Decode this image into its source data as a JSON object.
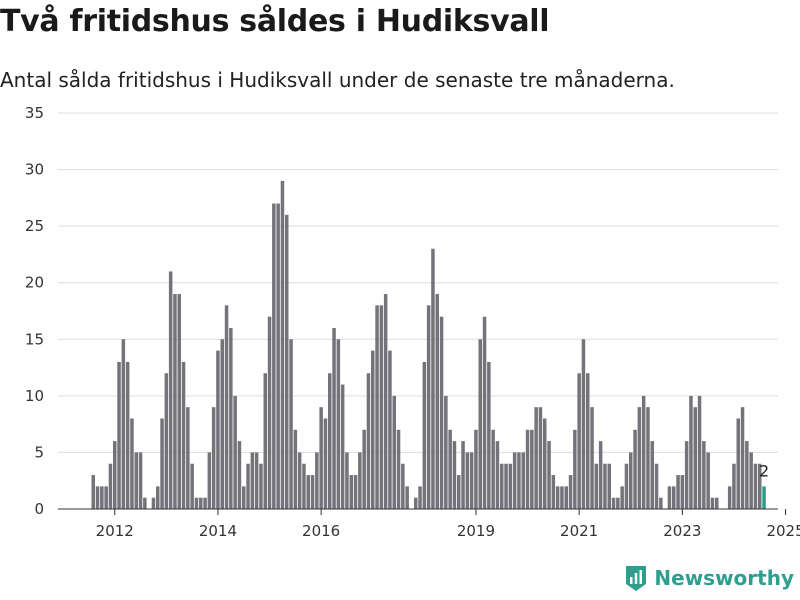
{
  "title": "Två fritidshus såldes i Hudiksvall",
  "subtitle": "Antal sålda fritidshus i Hudiksvall under de senaste tre månaderna.",
  "brand": "Newsworthy",
  "colors": {
    "bar": "#75737a",
    "highlight": "#2a9d8f",
    "brand": "#2e9f8f",
    "grid": "#dddddd"
  },
  "chart_data": {
    "type": "bar",
    "x_start_index": 7,
    "values": [
      3,
      2,
      2,
      2,
      4,
      6,
      13,
      15,
      13,
      8,
      5,
      5,
      1,
      0,
      1,
      2,
      8,
      12,
      21,
      19,
      19,
      13,
      9,
      4,
      1,
      1,
      1,
      5,
      9,
      14,
      15,
      18,
      16,
      10,
      6,
      2,
      4,
      5,
      5,
      4,
      12,
      17,
      27,
      27,
      29,
      26,
      15,
      7,
      5,
      4,
      3,
      3,
      5,
      9,
      8,
      12,
      16,
      15,
      11,
      5,
      3,
      3,
      5,
      7,
      12,
      14,
      18,
      18,
      19,
      14,
      10,
      7,
      4,
      2,
      0,
      1,
      2,
      13,
      18,
      23,
      19,
      17,
      10,
      7,
      6,
      3,
      6,
      5,
      5,
      7,
      15,
      17,
      13,
      7,
      6,
      4,
      4,
      4,
      5,
      5,
      5,
      7,
      7,
      9,
      9,
      8,
      6,
      3,
      2,
      2,
      2,
      3,
      7,
      12,
      15,
      12,
      9,
      4,
      6,
      4,
      4,
      1,
      1,
      2,
      4,
      5,
      7,
      9,
      10,
      9,
      6,
      4,
      1,
      0,
      2,
      2,
      3,
      3,
      6,
      10,
      9,
      10,
      6,
      5,
      1,
      1,
      0,
      0,
      2,
      4,
      8,
      9,
      6,
      5,
      4,
      4,
      2
    ],
    "highlight_last": true,
    "last_value_label": "2",
    "x_ticks": [
      "2012",
      "2014",
      "2016",
      "2019",
      "2021",
      "2023",
      "2025"
    ],
    "x_tick_indices": [
      12,
      36,
      60,
      96,
      120,
      144,
      168
    ],
    "y_ticks": [
      "0",
      "5",
      "10",
      "15",
      "20",
      "25",
      "30",
      "35"
    ],
    "ylim": [
      0,
      35
    ],
    "grid": true
  }
}
